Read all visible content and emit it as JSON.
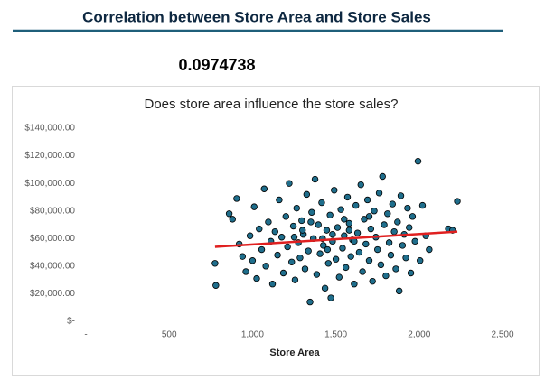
{
  "header": {
    "title": "Correlation between Store Area and Store Sales"
  },
  "correlation": 0.0974738,
  "chart_data": {
    "type": "scatter",
    "title": "Does store area influence the store sales?",
    "x_label": "Store Area",
    "color": "#1f6e8c",
    "grid": false,
    "xlim": [
      0,
      2500
    ],
    "xticks": [
      {
        "value": 0,
        "label": "-"
      },
      500,
      {
        "value": 1000,
        "label": "1,000"
      },
      {
        "value": 1500,
        "label": "1,500"
      },
      {
        "value": 2000,
        "label": "2,000"
      },
      {
        "value": 2500,
        "label": "2,500"
      }
    ],
    "ylim": [
      0,
      140000
    ],
    "yticks": [
      {
        "value": 0,
        "label": "$-"
      },
      {
        "value": 20000,
        "label": "$20,000.00"
      },
      {
        "value": 40000,
        "label": "$40,000.00"
      },
      {
        "value": 60000,
        "label": "$60,000.00"
      },
      {
        "value": 80000,
        "label": "$80,000.00"
      },
      {
        "value": 100000,
        "label": "$100,000.00"
      },
      {
        "value": 120000,
        "label": "$120,000.00"
      },
      {
        "value": 140000,
        "label": "$140,000.00"
      }
    ],
    "x": [
      775,
      780,
      860,
      880,
      905,
      920,
      940,
      960,
      985,
      1000,
      1010,
      1025,
      1040,
      1055,
      1070,
      1080,
      1095,
      1110,
      1120,
      1135,
      1150,
      1160,
      1175,
      1185,
      1200,
      1210,
      1220,
      1235,
      1245,
      1255,
      1265,
      1275,
      1285,
      1295,
      1305,
      1315,
      1325,
      1335,
      1345,
      1355,
      1365,
      1375,
      1385,
      1395,
      1405,
      1415,
      1425,
      1435,
      1445,
      1455,
      1465,
      1470,
      1480,
      1490,
      1500,
      1510,
      1520,
      1530,
      1540,
      1550,
      1560,
      1570,
      1580,
      1590,
      1600,
      1610,
      1620,
      1630,
      1640,
      1650,
      1660,
      1670,
      1680,
      1690,
      1700,
      1710,
      1720,
      1730,
      1740,
      1750,
      1760,
      1770,
      1780,
      1790,
      1800,
      1810,
      1820,
      1830,
      1840,
      1850,
      1860,
      1870,
      1880,
      1890,
      1900,
      1910,
      1920,
      1930,
      1940,
      1950,
      1960,
      1975,
      1993,
      2005,
      2020,
      2040,
      2060,
      2175,
      2200,
      2229,
      1300,
      1420,
      1550,
      1610,
      1480,
      1350,
      1700,
      1250,
      1450,
      1580
    ],
    "y": [
      42000,
      26000,
      78000,
      74000,
      89000,
      56000,
      47000,
      36000,
      62000,
      44000,
      83000,
      31000,
      67000,
      52000,
      96000,
      40000,
      72000,
      58000,
      27000,
      65000,
      48000,
      88000,
      61000,
      35000,
      76000,
      54000,
      100000,
      43000,
      69000,
      30000,
      82000,
      57000,
      46000,
      73000,
      63000,
      38000,
      92000,
      51000,
      14000,
      79000,
      60000,
      103000,
      34000,
      70000,
      49000,
      86000,
      55000,
      24000,
      66000,
      42000,
      77000,
      17000,
      58000,
      95000,
      45000,
      68000,
      32000,
      81000,
      53000,
      62000,
      39000,
      90000,
      71000,
      47000,
      59000,
      27000,
      84000,
      64000,
      50000,
      99000,
      36000,
      74000,
      56000,
      88000,
      44000,
      67000,
      29000,
      80000,
      61000,
      52000,
      93000,
      41000,
      105000,
      70000,
      33000,
      78000,
      57000,
      48000,
      85000,
      65000,
      38000,
      72000,
      22000,
      91000,
      55000,
      63000,
      46000,
      82000,
      68000,
      35000,
      76000,
      58000,
      116000,
      44000,
      84000,
      62000,
      52000,
      67000,
      66000,
      87000,
      66000,
      60000,
      74000,
      58000,
      63000,
      72000,
      76000,
      61000,
      52000,
      66000
    ],
    "trendline": {
      "x": [
        775,
        2229
      ],
      "y": [
        54000,
        65000
      ],
      "color": "#e02020"
    }
  }
}
